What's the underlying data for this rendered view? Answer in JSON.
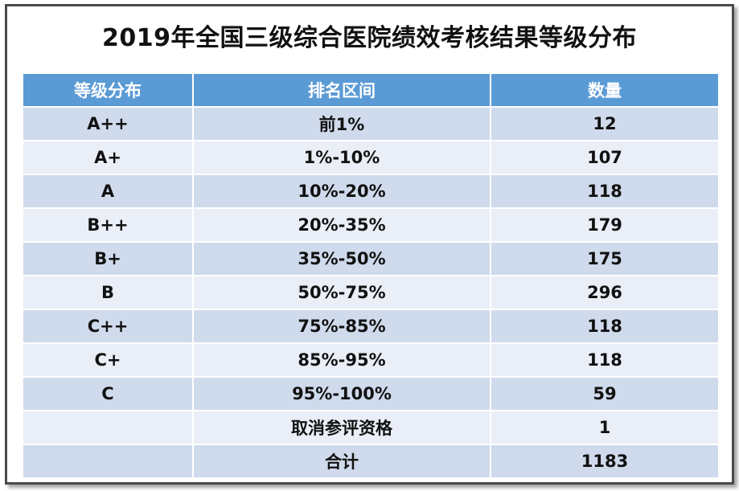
{
  "chart_data": {
    "type": "table",
    "title": "2019年全国三级综合医院绩效考核结果等级分布",
    "columns": [
      "等级分布",
      "排名区间",
      "数量"
    ],
    "rows": [
      [
        "A++",
        "前1%",
        "12"
      ],
      [
        "A+",
        "1%-10%",
        "107"
      ],
      [
        "A",
        "10%-20%",
        "118"
      ],
      [
        "B++",
        "20%-35%",
        "179"
      ],
      [
        "B+",
        "35%-50%",
        "175"
      ],
      [
        "B",
        "50%-75%",
        "296"
      ],
      [
        "C++",
        "75%-85%",
        "118"
      ],
      [
        "C+",
        "85%-95%",
        "118"
      ],
      [
        "C",
        "95%-100%",
        "59"
      ],
      [
        "",
        "取消参评资格",
        "1"
      ],
      [
        "",
        "合计",
        "1183"
      ]
    ]
  },
  "colors": {
    "header_bg": "#5b9bd5",
    "row_odd": "#cfdaec",
    "row_even": "#e9eef7"
  }
}
